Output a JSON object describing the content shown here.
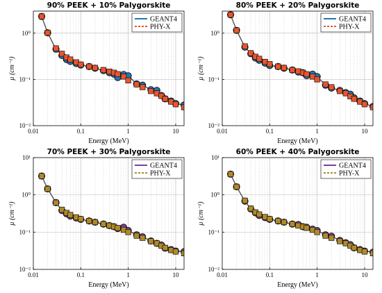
{
  "chart_data": [
    {
      "type": "scatter",
      "title": "90% PEEK + 10% Palygorskite",
      "xlabel": "Energy (MeV)",
      "ylabel": "μ (cm⁻¹)",
      "x_scale": "log",
      "y_scale": "log",
      "xlim": [
        0.01,
        15
      ],
      "ylim": [
        0.01,
        3
      ],
      "x_ticks": [
        "0.01",
        "0.1",
        "1",
        "10"
      ],
      "y_ticks": [
        "10⁻²",
        "10⁻¹",
        "10⁰"
      ],
      "grid": true,
      "legend": "top-right",
      "series": [
        {
          "name": "GEANT4",
          "color": "#1f77b4",
          "marker": "circle",
          "x": [
            0.015,
            0.02,
            0.03,
            0.04,
            0.05,
            0.06,
            0.08,
            0.1,
            0.15,
            0.2,
            0.3,
            0.4,
            0.5,
            0.6,
            0.8,
            1,
            1.5,
            2,
            3,
            4,
            5,
            6,
            8,
            10,
            15
          ],
          "y": [
            2.3,
            1.02,
            0.45,
            0.33,
            0.27,
            0.245,
            0.22,
            0.205,
            0.19,
            0.175,
            0.155,
            0.14,
            0.13,
            0.11,
            0.128,
            0.12,
            0.08,
            0.075,
            0.06,
            0.058,
            0.045,
            0.038,
            0.034,
            0.03,
            0.028
          ]
        },
        {
          "name": "PHY-X",
          "color": "#e8552e",
          "marker": "square",
          "x": [
            0.015,
            0.02,
            0.03,
            0.04,
            0.05,
            0.06,
            0.08,
            0.1,
            0.15,
            0.2,
            0.3,
            0.4,
            0.5,
            0.6,
            0.8,
            1,
            1.5,
            2,
            3,
            4,
            5,
            6,
            8,
            10,
            15
          ],
          "y": [
            2.3,
            1.02,
            0.47,
            0.36,
            0.3,
            0.27,
            0.235,
            0.21,
            0.19,
            0.178,
            0.16,
            0.148,
            0.14,
            0.13,
            0.115,
            0.095,
            0.078,
            0.068,
            0.056,
            0.05,
            0.044,
            0.038,
            0.033,
            0.029,
            0.025
          ]
        }
      ]
    },
    {
      "type": "scatter",
      "title": "80% PEEK + 20% Palygorskite",
      "xlabel": "Energy (MeV)",
      "ylabel": "μ (cm⁻¹)",
      "x_scale": "log",
      "y_scale": "log",
      "xlim": [
        0.01,
        15
      ],
      "ylim": [
        0.01,
        3
      ],
      "x_ticks": [
        "0.01",
        "0.1",
        "1",
        "10"
      ],
      "y_ticks": [
        "10⁻²",
        "10⁻¹",
        "10⁰"
      ],
      "grid": true,
      "legend": "top-right",
      "series": [
        {
          "name": "GEANT4",
          "color": "#1f77b4",
          "marker": "circle",
          "x": [
            0.015,
            0.02,
            0.03,
            0.04,
            0.05,
            0.06,
            0.08,
            0.1,
            0.15,
            0.2,
            0.3,
            0.4,
            0.5,
            0.6,
            0.8,
            1,
            1.5,
            2,
            3,
            4,
            5,
            6,
            8,
            10,
            15
          ],
          "y": [
            2.5,
            1.15,
            0.5,
            0.36,
            0.29,
            0.26,
            0.225,
            0.2,
            0.19,
            0.175,
            0.16,
            0.145,
            0.14,
            0.12,
            0.13,
            0.115,
            0.075,
            0.065,
            0.058,
            0.052,
            0.048,
            0.04,
            0.034,
            0.03,
            0.026
          ]
        },
        {
          "name": "PHY-X",
          "color": "#e8552e",
          "marker": "square",
          "x": [
            0.015,
            0.02,
            0.03,
            0.04,
            0.05,
            0.06,
            0.08,
            0.1,
            0.15,
            0.2,
            0.3,
            0.4,
            0.5,
            0.6,
            0.8,
            1,
            1.5,
            2,
            3,
            4,
            5,
            6,
            8,
            10,
            15
          ],
          "y": [
            2.5,
            1.15,
            0.52,
            0.37,
            0.31,
            0.28,
            0.24,
            0.215,
            0.19,
            0.178,
            0.16,
            0.15,
            0.14,
            0.13,
            0.115,
            0.1,
            0.078,
            0.068,
            0.056,
            0.05,
            0.043,
            0.038,
            0.033,
            0.029,
            0.025
          ]
        }
      ]
    },
    {
      "type": "scatter",
      "title": "70% PEEK + 30% Palygorskite",
      "xlabel": "Energy (MeV)",
      "ylabel": "μ (cm⁻¹)",
      "x_scale": "log",
      "y_scale": "log",
      "xlim": [
        0.01,
        15
      ],
      "ylim": [
        0.01,
        10
      ],
      "x_ticks": [
        "0.01",
        "0.1",
        "1",
        "10"
      ],
      "y_ticks": [
        "10⁻²",
        "10⁻¹",
        "10⁰",
        "10¹"
      ],
      "grid": true,
      "legend": "top-right",
      "series": [
        {
          "name": "GEANT4",
          "color": "#7b3fa0",
          "marker": "circle",
          "x": [
            0.015,
            0.02,
            0.03,
            0.04,
            0.05,
            0.06,
            0.08,
            0.1,
            0.15,
            0.2,
            0.3,
            0.4,
            0.5,
            0.6,
            0.8,
            1,
            1.5,
            2,
            3,
            4,
            5,
            6,
            8,
            10,
            15
          ],
          "y": [
            3.2,
            1.45,
            0.62,
            0.38,
            0.31,
            0.27,
            0.24,
            0.22,
            0.2,
            0.185,
            0.165,
            0.15,
            0.14,
            0.125,
            0.135,
            0.11,
            0.085,
            0.075,
            0.058,
            0.05,
            0.045,
            0.037,
            0.034,
            0.031,
            0.03
          ]
        },
        {
          "name": "PHY-X",
          "color": "#b08a2a",
          "marker": "square",
          "x": [
            0.015,
            0.02,
            0.03,
            0.04,
            0.05,
            0.06,
            0.08,
            0.1,
            0.15,
            0.2,
            0.3,
            0.4,
            0.5,
            0.6,
            0.8,
            1,
            1.5,
            2,
            3,
            4,
            5,
            6,
            8,
            10,
            15
          ],
          "y": [
            3.2,
            1.45,
            0.62,
            0.4,
            0.33,
            0.29,
            0.25,
            0.225,
            0.2,
            0.185,
            0.165,
            0.15,
            0.14,
            0.13,
            0.115,
            0.1,
            0.08,
            0.07,
            0.057,
            0.05,
            0.043,
            0.038,
            0.033,
            0.03,
            0.027
          ]
        }
      ]
    },
    {
      "type": "scatter",
      "title": "60% PEEK + 40% Palygorskite",
      "xlabel": "Energy (MeV)",
      "ylabel": "μ (cm⁻¹)",
      "x_scale": "log",
      "y_scale": "log",
      "xlim": [
        0.01,
        15
      ],
      "ylim": [
        0.01,
        10
      ],
      "x_ticks": [
        "0.01",
        "0.1",
        "1",
        "10"
      ],
      "y_ticks": [
        "10⁻²",
        "10⁻¹",
        "10⁰",
        "10¹"
      ],
      "grid": true,
      "legend": "top-right",
      "series": [
        {
          "name": "GEANT4",
          "color": "#7b3fa0",
          "marker": "circle",
          "x": [
            0.015,
            0.02,
            0.03,
            0.04,
            0.05,
            0.06,
            0.08,
            0.1,
            0.15,
            0.2,
            0.3,
            0.4,
            0.5,
            0.6,
            0.8,
            1,
            1.5,
            2,
            3,
            4,
            5,
            6,
            8,
            10,
            15
          ],
          "y": [
            3.6,
            1.65,
            0.68,
            0.42,
            0.33,
            0.28,
            0.245,
            0.22,
            0.2,
            0.185,
            0.165,
            0.16,
            0.14,
            0.135,
            0.12,
            0.11,
            0.085,
            0.078,
            0.06,
            0.052,
            0.046,
            0.038,
            0.034,
            0.031,
            0.029
          ]
        },
        {
          "name": "PHY-X",
          "color": "#b08a2a",
          "marker": "square",
          "x": [
            0.015,
            0.02,
            0.03,
            0.04,
            0.05,
            0.06,
            0.08,
            0.1,
            0.15,
            0.2,
            0.3,
            0.4,
            0.5,
            0.6,
            0.8,
            1,
            1.5,
            2,
            3,
            4,
            5,
            6,
            8,
            10,
            15
          ],
          "y": [
            3.6,
            1.65,
            0.7,
            0.43,
            0.34,
            0.3,
            0.255,
            0.225,
            0.2,
            0.185,
            0.165,
            0.15,
            0.14,
            0.13,
            0.115,
            0.1,
            0.08,
            0.07,
            0.057,
            0.05,
            0.043,
            0.038,
            0.033,
            0.03,
            0.027
          ]
        }
      ]
    }
  ]
}
